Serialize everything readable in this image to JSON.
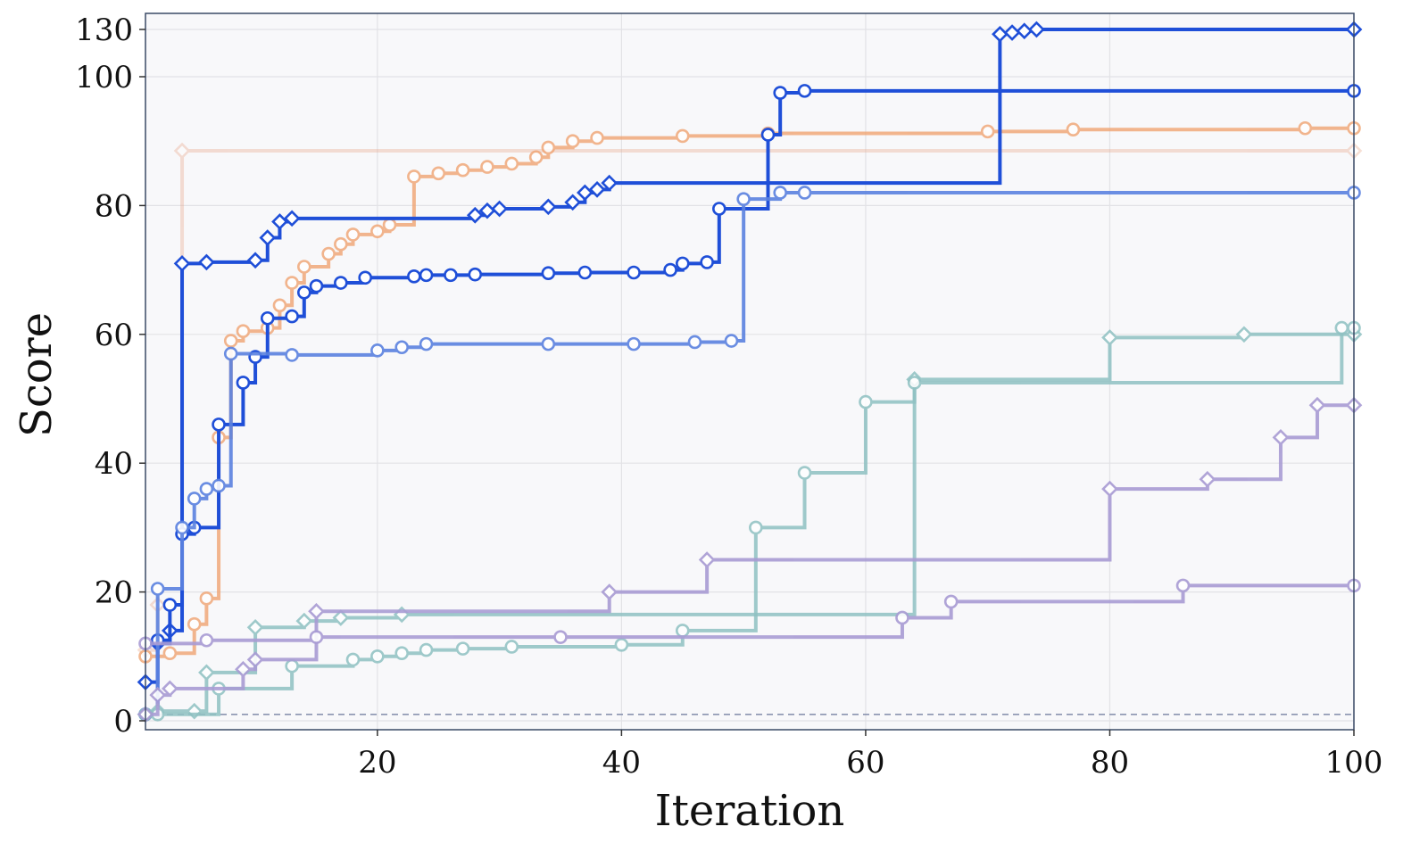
{
  "chart_data": {
    "type": "line",
    "title": "",
    "xlabel": "Iteration",
    "ylabel": "Score",
    "xlim": [
      1,
      100
    ],
    "ylim": [
      -2,
      132
    ],
    "y_scale": "broken above 100 (100 to 130 compressed)",
    "x_ticks": [
      "20",
      "40",
      "60",
      "80",
      "100"
    ],
    "x_tick_values": [
      20,
      40,
      60,
      80,
      100
    ],
    "y_ticks": [
      "0",
      "20",
      "40",
      "60",
      "80",
      "100",
      "130"
    ],
    "y_tick_values": [
      0,
      20,
      40,
      60,
      80,
      100,
      130
    ],
    "grid": true,
    "background": "#f8f8fa",
    "reference_line_y": 1,
    "series": [
      {
        "color": "#e8a586",
        "marker": "diamond",
        "opacity": 0.35,
        "best": [
          [
            1,
            11
          ],
          [
            2,
            18
          ],
          [
            4,
            88.5
          ],
          [
            100,
            88.5
          ]
        ]
      },
      {
        "color": "#f0a472",
        "marker": "circle",
        "opacity": 0.8,
        "best": [
          [
            1,
            10
          ],
          [
            3,
            10.5
          ],
          [
            5,
            15
          ],
          [
            6,
            19
          ],
          [
            7,
            44
          ],
          [
            8,
            59
          ],
          [
            9,
            60.5
          ],
          [
            11,
            61
          ],
          [
            12,
            64.5
          ],
          [
            13,
            68
          ],
          [
            14,
            70.5
          ],
          [
            16,
            72.5
          ],
          [
            17,
            74
          ],
          [
            18,
            75.5
          ],
          [
            20,
            76
          ],
          [
            21,
            77
          ],
          [
            23,
            84.5
          ],
          [
            25,
            85
          ],
          [
            27,
            85.5
          ],
          [
            29,
            86
          ],
          [
            31,
            86.5
          ],
          [
            33,
            87.5
          ],
          [
            34,
            89
          ],
          [
            36,
            90
          ],
          [
            38,
            90.5
          ],
          [
            45,
            90.8
          ],
          [
            52,
            91.2
          ],
          [
            70,
            91.5
          ],
          [
            77,
            91.8
          ],
          [
            96,
            92
          ],
          [
            100,
            92
          ]
        ]
      },
      {
        "color": "#1f4fd8",
        "marker": "diamond",
        "opacity": 1,
        "best": [
          [
            1,
            6
          ],
          [
            2,
            12
          ],
          [
            3,
            14
          ],
          [
            4,
            71
          ],
          [
            6,
            71.2
          ],
          [
            10,
            71.5
          ],
          [
            11,
            75
          ],
          [
            12,
            77.5
          ],
          [
            13,
            78
          ],
          [
            28,
            78.5
          ],
          [
            29,
            79.2
          ],
          [
            30,
            79.5
          ],
          [
            34,
            79.8
          ],
          [
            36,
            80.5
          ],
          [
            37,
            82
          ],
          [
            38,
            82.5
          ],
          [
            39,
            83.5
          ],
          [
            71,
            127
          ],
          [
            72,
            128
          ],
          [
            73,
            129
          ],
          [
            74,
            130
          ],
          [
            100,
            130
          ]
        ]
      },
      {
        "color": "#1f4fd8",
        "marker": "circle",
        "opacity": 1,
        "best": [
          [
            1,
            1
          ],
          [
            2,
            12.5
          ],
          [
            3,
            18
          ],
          [
            4,
            29
          ],
          [
            5,
            30
          ],
          [
            7,
            46
          ],
          [
            9,
            52.5
          ],
          [
            10,
            56.5
          ],
          [
            11,
            62.5
          ],
          [
            13,
            62.8
          ],
          [
            14,
            66.5
          ],
          [
            15,
            67.5
          ],
          [
            17,
            68
          ],
          [
            19,
            68.8
          ],
          [
            23,
            69
          ],
          [
            24,
            69.2
          ],
          [
            26,
            69.2
          ],
          [
            28,
            69.3
          ],
          [
            34,
            69.5
          ],
          [
            37,
            69.6
          ],
          [
            41,
            69.6
          ],
          [
            44,
            70
          ],
          [
            45,
            71
          ],
          [
            47,
            71.2
          ],
          [
            48,
            79.5
          ],
          [
            52,
            91
          ],
          [
            53,
            97.5
          ],
          [
            55,
            97.8
          ],
          [
            100,
            97.8
          ]
        ]
      },
      {
        "color": "#5b82e0",
        "marker": "circle",
        "opacity": 0.9,
        "best": [
          [
            1,
            1
          ],
          [
            2,
            20.5
          ],
          [
            4,
            30
          ],
          [
            5,
            34.5
          ],
          [
            6,
            36
          ],
          [
            7,
            36.5
          ],
          [
            8,
            57
          ],
          [
            13,
            56.8
          ],
          [
            20,
            57.5
          ],
          [
            22,
            58
          ],
          [
            24,
            58.5
          ],
          [
            34,
            58.5
          ],
          [
            41,
            58.5
          ],
          [
            46,
            58.8
          ],
          [
            49,
            59
          ],
          [
            50,
            81
          ],
          [
            53,
            82
          ],
          [
            55,
            82
          ],
          [
            100,
            82
          ]
        ]
      },
      {
        "color": "#8fc1c2",
        "marker": "diamond",
        "opacity": 0.85,
        "best": [
          [
            1,
            1
          ],
          [
            2,
            1.5
          ],
          [
            5,
            1.5
          ],
          [
            6,
            7.5
          ],
          [
            10,
            14.5
          ],
          [
            14,
            15.5
          ],
          [
            17,
            16
          ],
          [
            22,
            16.5
          ],
          [
            64,
            53
          ],
          [
            80,
            59.5
          ],
          [
            91,
            60
          ],
          [
            100,
            60
          ]
        ]
      },
      {
        "color": "#8fc1c2",
        "marker": "circle",
        "opacity": 0.85,
        "best": [
          [
            1,
            1
          ],
          [
            2,
            1
          ],
          [
            7,
            5
          ],
          [
            13,
            8.5
          ],
          [
            18,
            9.5
          ],
          [
            20,
            10
          ],
          [
            22,
            10.5
          ],
          [
            24,
            11
          ],
          [
            27,
            11.2
          ],
          [
            31,
            11.5
          ],
          [
            40,
            11.8
          ],
          [
            45,
            14
          ],
          [
            51,
            30
          ],
          [
            55,
            38.5
          ],
          [
            60,
            49.5
          ],
          [
            64,
            52.5
          ],
          [
            99,
            61
          ],
          [
            100,
            61
          ]
        ]
      },
      {
        "color": "#a99cd4",
        "marker": "diamond",
        "opacity": 0.9,
        "best": [
          [
            1,
            1
          ],
          [
            2,
            4
          ],
          [
            3,
            5
          ],
          [
            9,
            8
          ],
          [
            10,
            9.5
          ],
          [
            15,
            17
          ],
          [
            39,
            20
          ],
          [
            47,
            25
          ],
          [
            80,
            36
          ],
          [
            88,
            37.5
          ],
          [
            94,
            44
          ],
          [
            97,
            49
          ],
          [
            100,
            49
          ]
        ]
      },
      {
        "color": "#a99cd4",
        "marker": "circle",
        "opacity": 0.9,
        "best": [
          [
            1,
            12
          ],
          [
            6,
            12.5
          ],
          [
            15,
            13
          ],
          [
            35,
            13
          ],
          [
            63,
            16
          ],
          [
            67,
            18.5
          ],
          [
            86,
            21
          ],
          [
            100,
            21
          ]
        ]
      }
    ]
  }
}
